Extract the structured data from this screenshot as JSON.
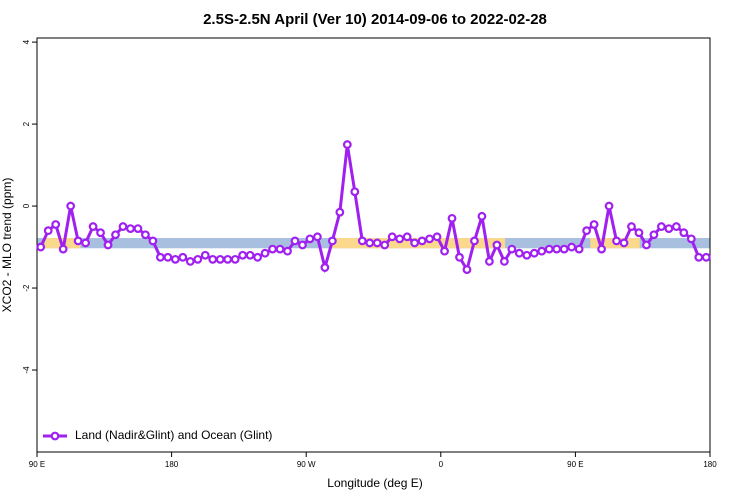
{
  "chart_data": {
    "type": "line",
    "title": "2.5S-2.5N April (Ver 10)   2014-09-06 to 2022-02-28",
    "x_label": "Longitude (deg E)",
    "y_label": "XCO2 - MLO trend (ppm)",
    "xlim": [
      90,
      540
    ],
    "ylim": [
      -6,
      4.1
    ],
    "xticks": [
      {
        "value": 90,
        "label": "90 E"
      },
      {
        "value": 180,
        "label": "180"
      },
      {
        "value": 270,
        "label": "90 W"
      },
      {
        "value": 360,
        "label": "0"
      },
      {
        "value": 450,
        "label": "90 E"
      },
      {
        "value": 540,
        "label": "180"
      }
    ],
    "yticks": [
      -4,
      -2,
      0,
      2,
      4
    ],
    "legend": "bottom-left",
    "reference_band": [
      -1.03,
      -0.78
    ],
    "band_color": "#a9bfdf",
    "land_color": "#fbd98c",
    "land_segments": [
      [
        95,
        119
      ],
      [
        286,
        403
      ],
      [
        460,
        493
      ]
    ],
    "series": [
      {
        "name": "Land (Nadir&Glint) and Ocean (Glint)",
        "color": "#a020f0",
        "x": [
          92.5,
          97.5,
          102.5,
          107.5,
          112.5,
          117.5,
          122.5,
          127.5,
          132.5,
          137.5,
          142.5,
          147.5,
          152.5,
          157.5,
          162.5,
          167.5,
          172.5,
          177.5,
          182.5,
          187.5,
          192.5,
          197.5,
          202.5,
          207.5,
          212.5,
          217.5,
          222.5,
          227.5,
          232.5,
          237.5,
          242.5,
          247.5,
          252.5,
          257.5,
          262.5,
          267.5,
          272.5,
          277.5,
          282.5,
          287.5,
          292.5,
          297.5,
          302.5,
          307.5,
          312.5,
          317.5,
          322.5,
          327.5,
          332.5,
          337.5,
          342.5,
          347.5,
          352.5,
          357.5,
          362.5,
          367.5,
          372.5,
          377.5,
          382.5,
          387.5,
          392.5,
          397.5,
          402.5,
          407.5,
          412.5,
          417.5,
          422.5,
          427.5,
          432.5,
          437.5,
          442.5,
          447.5,
          452.5,
          457.5,
          462.5,
          467.5,
          472.5,
          477.5,
          482.5,
          487.5,
          492.5,
          497.5,
          502.5,
          507.5,
          512.5,
          517.5,
          522.5,
          527.5,
          532.5,
          537.5
        ],
        "values": [
          -1.0,
          -0.6,
          -0.45,
          -1.05,
          0.0,
          -0.85,
          -0.9,
          -0.5,
          -0.65,
          -0.95,
          -0.7,
          -0.5,
          -0.55,
          -0.55,
          -0.7,
          -0.85,
          -1.25,
          -1.25,
          -1.3,
          -1.25,
          -1.35,
          -1.3,
          -1.2,
          -1.3,
          -1.3,
          -1.3,
          -1.3,
          -1.2,
          -1.2,
          -1.25,
          -1.15,
          -1.05,
          -1.05,
          -1.1,
          -0.85,
          -0.95,
          -0.8,
          -0.75,
          -1.5,
          -0.85,
          -0.15,
          1.5,
          0.35,
          -0.85,
          -0.9,
          -0.9,
          -0.95,
          -0.75,
          -0.8,
          -0.75,
          -0.9,
          -0.85,
          -0.8,
          -0.75,
          -1.1,
          -0.3,
          -1.25,
          -1.55,
          -0.85,
          -0.25,
          -1.35,
          -0.95,
          -1.35,
          -1.05,
          -1.15,
          -1.2,
          -1.15,
          -1.1,
          -1.05,
          -1.05,
          -1.05,
          -1.0,
          -1.05,
          -0.6,
          -0.45,
          -1.05,
          0.0,
          -0.85,
          -0.9,
          -0.5,
          -0.65,
          -0.95,
          -0.7,
          -0.5,
          -0.55,
          -0.5,
          -0.65,
          -0.8,
          -1.25,
          -1.25
        ]
      }
    ]
  }
}
